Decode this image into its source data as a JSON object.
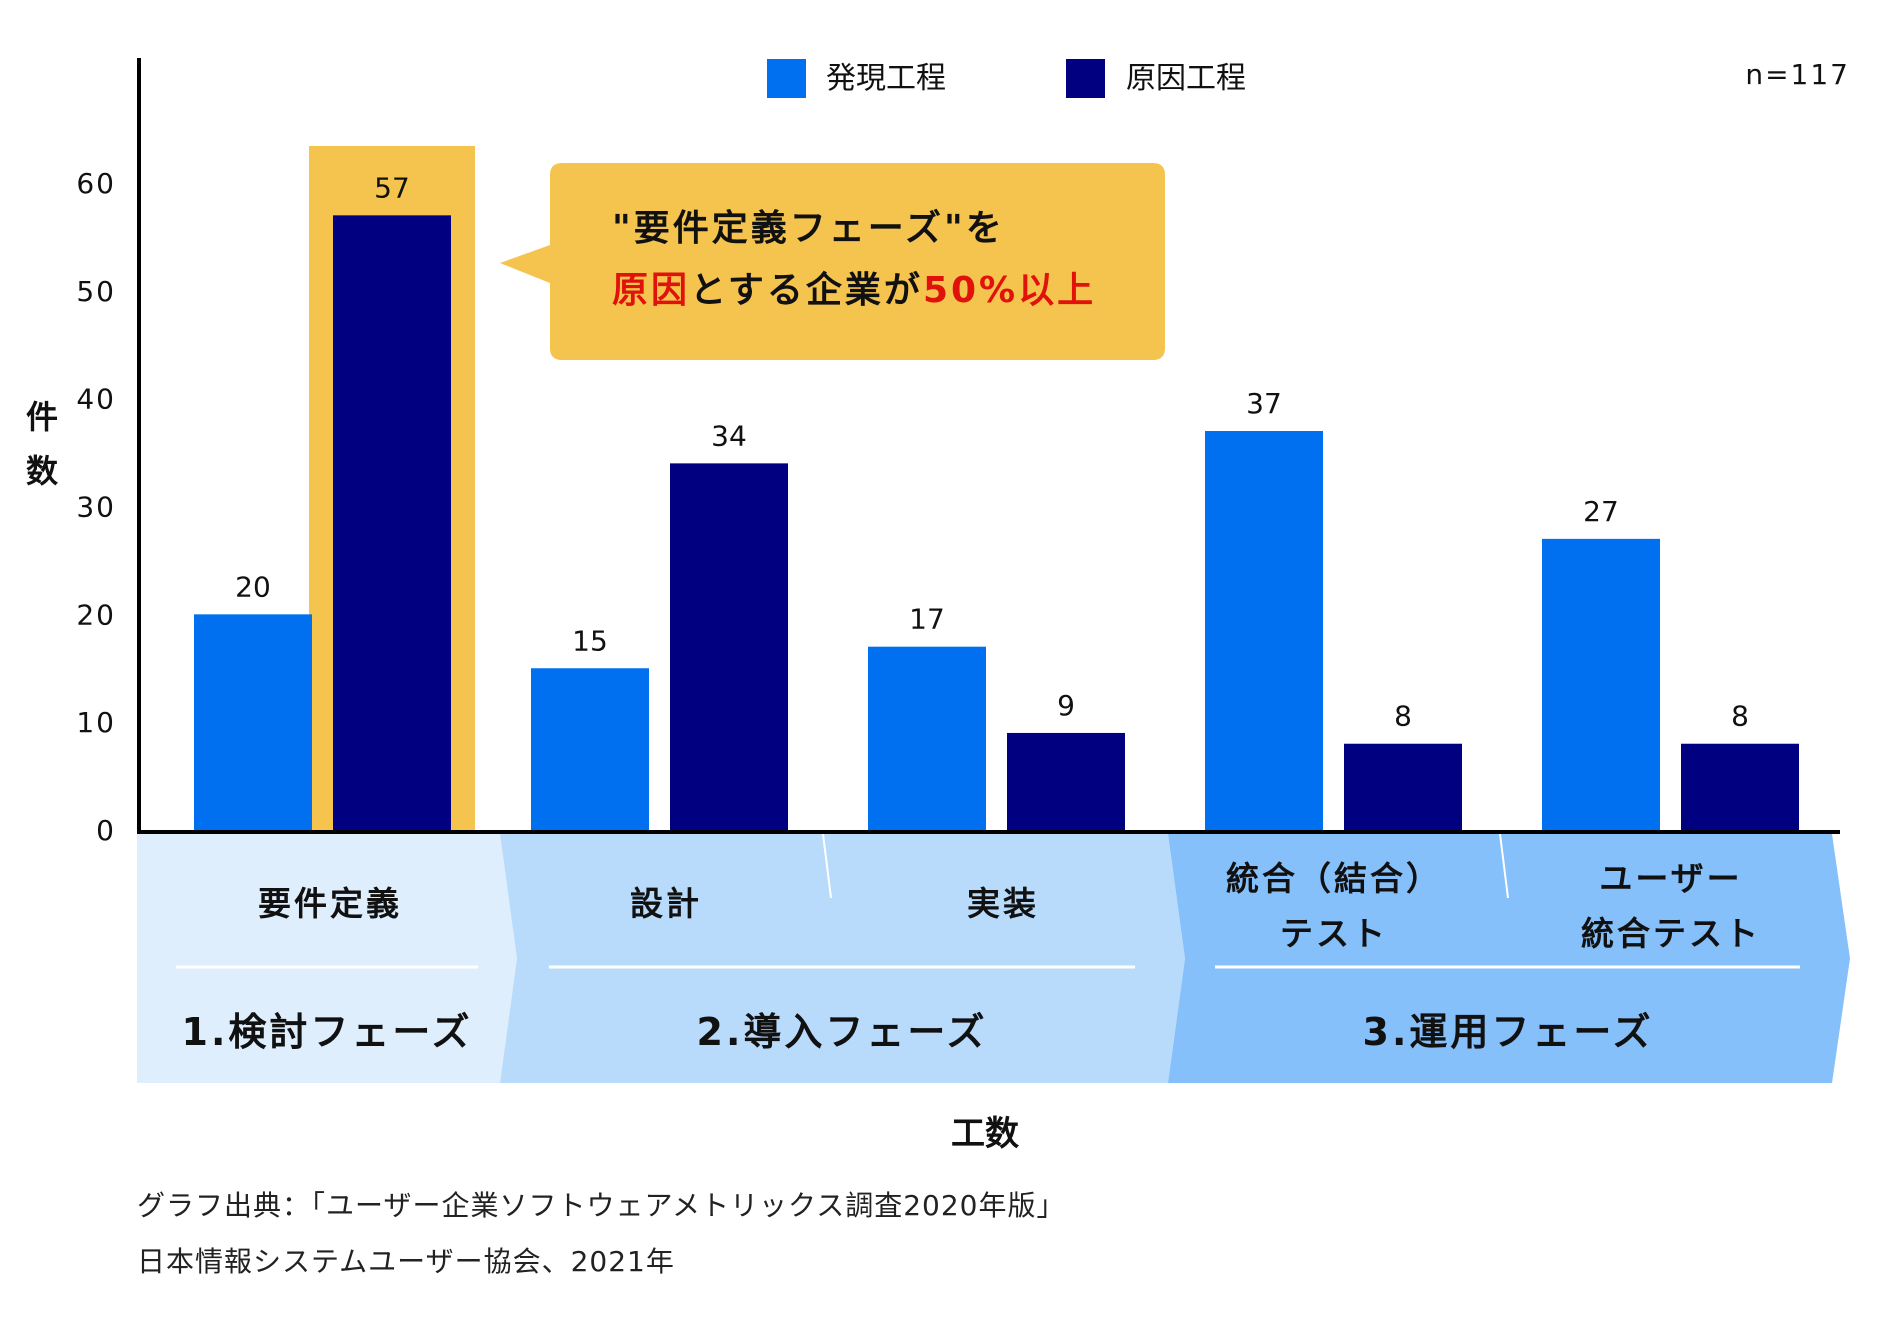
{
  "chart_data": {
    "type": "bar",
    "title": "",
    "ylabel": "件数",
    "xlabel": "工数",
    "ylim": [
      0,
      60
    ],
    "yticks": [
      "0",
      "10",
      "20",
      "30",
      "40",
      "50",
      "60"
    ],
    "sample_note": "n=117",
    "categories": [
      "要件定義",
      "設計",
      "実装",
      "統合（結合）テスト",
      "ユーザー統合テスト"
    ],
    "category_lines": [
      [
        "要件定義"
      ],
      [
        "設計"
      ],
      [
        "実装"
      ],
      [
        "統合（結合）",
        "テスト"
      ],
      [
        "ユーザー",
        "統合テスト"
      ]
    ],
    "series": [
      {
        "name": "発現工程",
        "color": "#0070f0",
        "values": [
          20,
          15,
          17,
          37,
          27
        ]
      },
      {
        "name": "原因工程",
        "color": "#000080",
        "values": [
          57,
          34,
          9,
          8,
          8
        ]
      }
    ],
    "highlight": {
      "category": "要件定義",
      "series": "原因工程",
      "color": "#f4c44e"
    },
    "phases": [
      {
        "label": "1.検討フェーズ",
        "color": "#dfeefd"
      },
      {
        "label": "2.導入フェーズ",
        "color": "#b8dbfc"
      },
      {
        "label": "3.運用フェーズ",
        "color": "#85c0fb"
      }
    ],
    "callout": {
      "line1": "\"要件定義フェーズ\"を",
      "line2_parts": [
        {
          "text": "原因",
          "red": true
        },
        {
          "text": "とする企業が",
          "red": false
        },
        {
          "text": "50%",
          "red": true
        },
        {
          "text": "以上",
          "red": true
        }
      ],
      "color": "#f4c44e",
      "accent": "#e0120b"
    },
    "legend_position": "top-center",
    "grid": false
  },
  "source": {
    "line1": "グラフ出典：「ユーザー企業ソフトウェアメトリックス調査2020年版」",
    "line2": "日本情報システムユーザー協会、2021年"
  }
}
